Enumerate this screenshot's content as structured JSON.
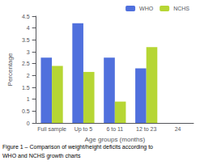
{
  "chart_data": {
    "type": "bar",
    "categories": [
      "Full sample",
      "Up to 5",
      "6 to 11",
      "12 to 23",
      "24"
    ],
    "series": [
      {
        "name": "WHO",
        "values": [
          2.75,
          4.2,
          2.75,
          2.3,
          null
        ]
      },
      {
        "name": "NCHS",
        "values": [
          2.4,
          2.15,
          0.9,
          3.2,
          null
        ]
      }
    ],
    "xlabel": "Age groups (months)",
    "ylabel": "Percentage",
    "ylim": [
      0,
      4.5
    ],
    "yticks": [
      0,
      0.5,
      1,
      1.5,
      2,
      2.5,
      3,
      3.5,
      4,
      4.5
    ],
    "grid": false,
    "legend": "upper right",
    "annotations": [
      "Figure 1 – Comparison of weight/height deficits according to",
      "WHO and NCHS growth charts"
    ]
  }
}
